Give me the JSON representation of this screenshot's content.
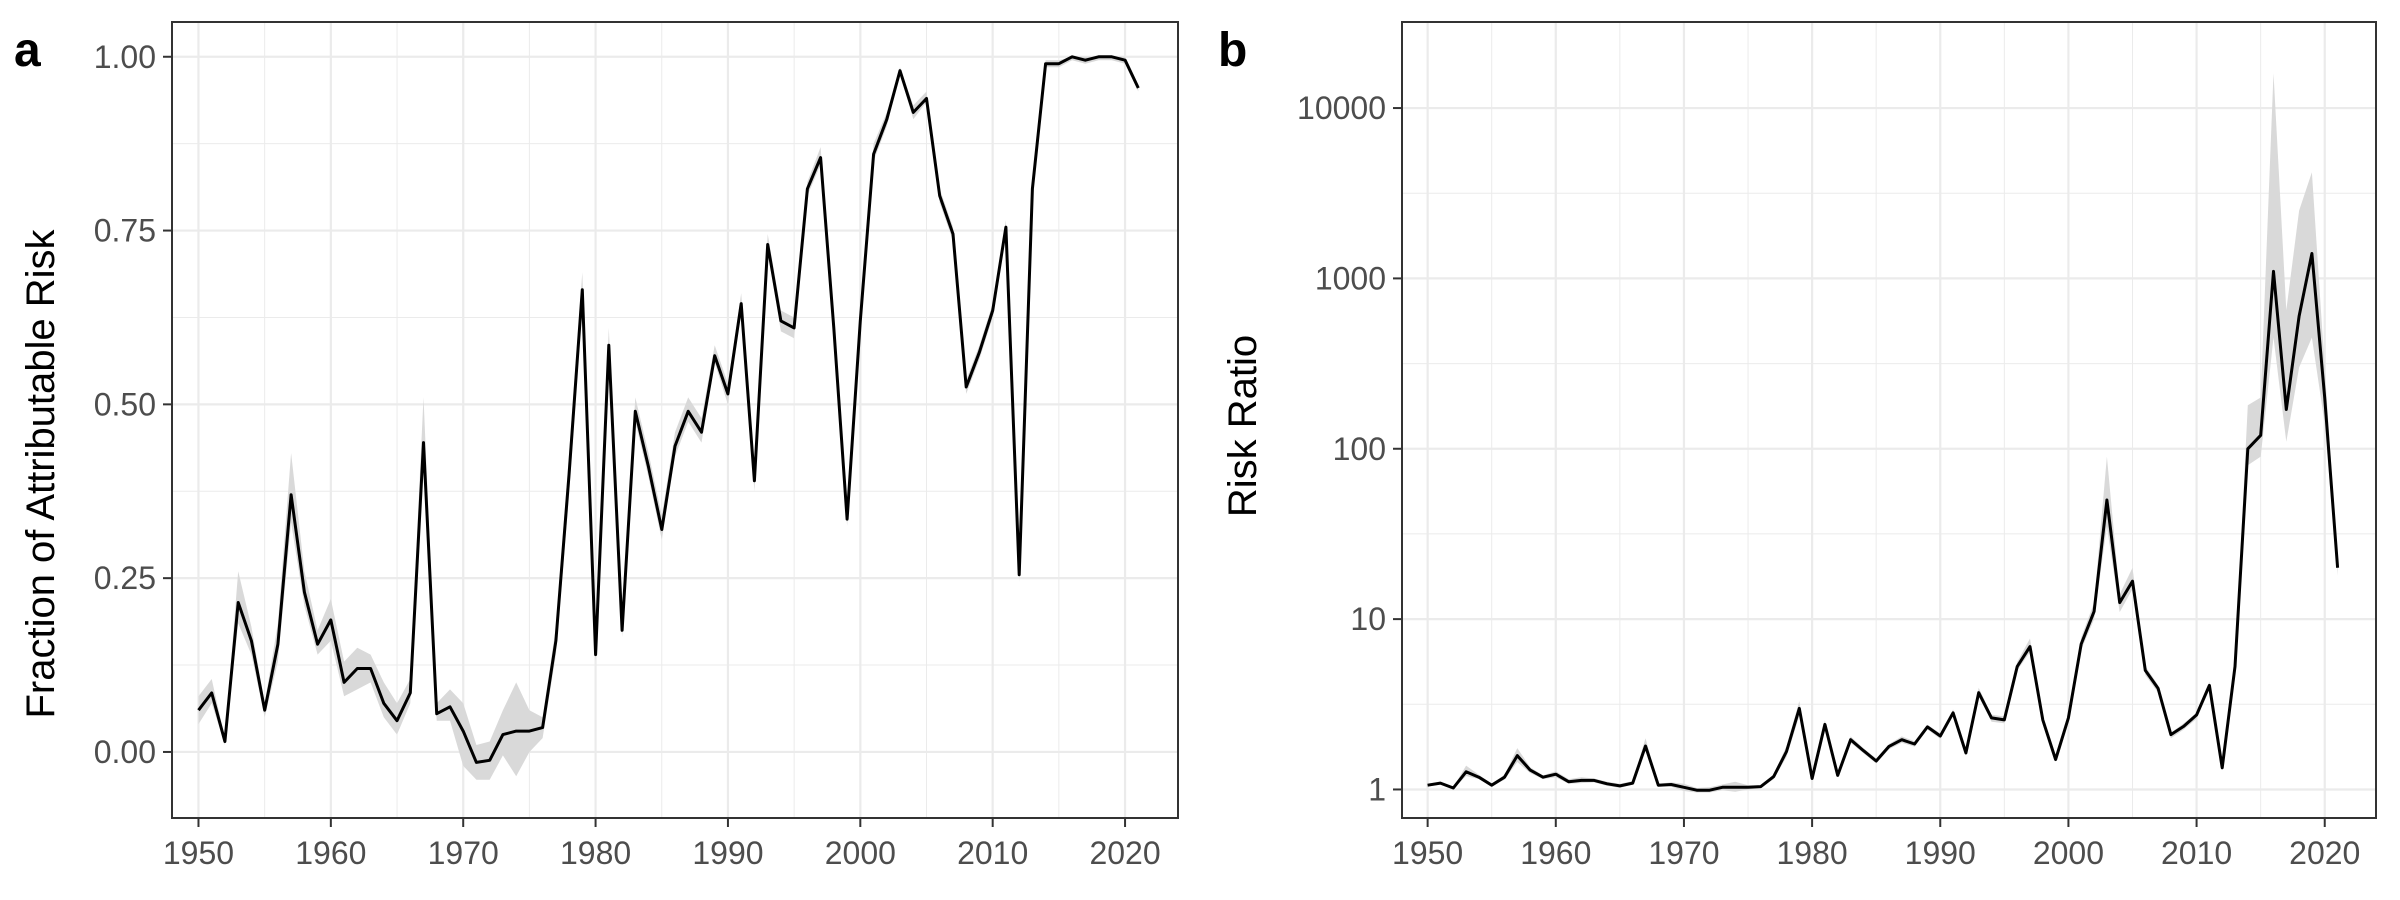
{
  "chart_data": [
    {
      "panel": "a",
      "type": "line",
      "title": "",
      "xlabel": "",
      "ylabel": "Fraction of Attributable Risk",
      "xlim": [
        1948,
        2024
      ],
      "ylim": [
        -0.095,
        1.05
      ],
      "xticks": [
        1950,
        1960,
        1970,
        1980,
        1990,
        2000,
        2010,
        2020
      ],
      "yticks": [
        0.0,
        0.25,
        0.5,
        0.75,
        1.0
      ],
      "ytick_labels": [
        "0.00",
        "0.25",
        "0.50",
        "0.75",
        "1.00"
      ],
      "grid": true,
      "colors": {
        "line": "#000000",
        "band": "#d9d9d9",
        "grid": "#ebebeb"
      },
      "series": [
        {
          "x": [
            1950,
            1951,
            1952,
            1953,
            1954,
            1955,
            1956,
            1957,
            1958,
            1959,
            1960,
            1961,
            1962,
            1963,
            1964,
            1965,
            1966,
            1967,
            1968,
            1969,
            1970,
            1971,
            1972,
            1973,
            1974,
            1975,
            1976,
            1977,
            1978,
            1979,
            1980,
            1981,
            1982,
            1983,
            1984,
            1985,
            1986,
            1987,
            1988,
            1989,
            1990,
            1991,
            1992,
            1993,
            1994,
            1995,
            1996,
            1997,
            1998,
            1999,
            2000,
            2001,
            2002,
            2003,
            2004,
            2005,
            2006,
            2007,
            2008,
            2009,
            2010,
            2011,
            2012,
            2013,
            2014,
            2015,
            2016,
            2017,
            2018,
            2019,
            2020,
            2021
          ],
          "y": [
            0.06,
            0.085,
            0.015,
            0.215,
            0.16,
            0.06,
            0.155,
            0.37,
            0.23,
            0.155,
            0.19,
            0.1,
            0.12,
            0.12,
            0.07,
            0.045,
            0.085,
            0.445,
            0.055,
            0.065,
            0.03,
            -0.015,
            -0.012,
            0.025,
            0.03,
            0.03,
            0.035,
            0.16,
            0.4,
            0.665,
            0.14,
            0.585,
            0.175,
            0.49,
            0.41,
            0.32,
            0.44,
            0.49,
            0.46,
            0.57,
            0.515,
            0.645,
            0.39,
            0.73,
            0.62,
            0.61,
            0.81,
            0.855,
            0.61,
            0.335,
            0.62,
            0.86,
            0.91,
            0.98,
            0.92,
            0.94,
            0.8,
            0.745,
            0.525,
            0.575,
            0.635,
            0.755,
            0.255,
            0.81,
            0.99,
            0.99,
            1.0,
            0.995,
            1.0,
            1.0,
            0.995,
            0.955
          ],
          "band_lower": [
            0.04,
            0.07,
            0.01,
            0.185,
            0.14,
            0.05,
            0.13,
            0.33,
            0.21,
            0.14,
            0.16,
            0.08,
            0.09,
            0.1,
            0.05,
            0.025,
            0.07,
            0.41,
            0.045,
            0.045,
            -0.02,
            -0.04,
            -0.04,
            -0.005,
            -0.035,
            0.0,
            0.02,
            0.14,
            0.37,
            0.645,
            0.13,
            0.57,
            0.165,
            0.475,
            0.395,
            0.305,
            0.425,
            0.475,
            0.445,
            0.56,
            0.5,
            0.635,
            0.375,
            0.72,
            0.605,
            0.595,
            0.8,
            0.845,
            0.6,
            0.325,
            0.61,
            0.85,
            0.9,
            0.975,
            0.91,
            0.935,
            0.79,
            0.735,
            0.515,
            0.565,
            0.625,
            0.745,
            0.245,
            0.8,
            0.985,
            0.985,
            0.995,
            0.99,
            0.995,
            0.995,
            0.99,
            0.95
          ],
          "band_upper": [
            0.08,
            0.105,
            0.02,
            0.26,
            0.18,
            0.07,
            0.185,
            0.43,
            0.26,
            0.175,
            0.22,
            0.13,
            0.15,
            0.14,
            0.1,
            0.07,
            0.105,
            0.51,
            0.07,
            0.09,
            0.07,
            0.01,
            0.015,
            0.06,
            0.1,
            0.06,
            0.05,
            0.18,
            0.43,
            0.69,
            0.155,
            0.61,
            0.19,
            0.51,
            0.43,
            0.34,
            0.46,
            0.51,
            0.48,
            0.585,
            0.53,
            0.66,
            0.405,
            0.745,
            0.635,
            0.625,
            0.82,
            0.87,
            0.62,
            0.345,
            0.635,
            0.875,
            0.92,
            0.985,
            0.93,
            0.95,
            0.81,
            0.755,
            0.535,
            0.585,
            0.645,
            0.765,
            0.265,
            0.82,
            0.995,
            0.995,
            1.0,
            1.0,
            1.0,
            1.0,
            1.0,
            0.96
          ]
        }
      ]
    },
    {
      "panel": "b",
      "type": "line",
      "title": "",
      "xlabel": "",
      "ylabel": "Risk Ratio",
      "xlim": [
        1948,
        2024
      ],
      "ylim": [
        0.68,
        32000
      ],
      "yscale": "log",
      "xticks": [
        1950,
        1960,
        1970,
        1980,
        1990,
        2000,
        2010,
        2020
      ],
      "yticks": [
        1,
        10,
        100,
        1000,
        10000
      ],
      "ytick_labels": [
        "1",
        "10",
        "100",
        "1000",
        "10000"
      ],
      "grid": true,
      "colors": {
        "line": "#000000",
        "band": "#d9d9d9",
        "grid": "#ebebeb"
      },
      "series": [
        {
          "x": [
            1950,
            1951,
            1952,
            1953,
            1954,
            1955,
            1956,
            1957,
            1958,
            1959,
            1960,
            1961,
            1962,
            1963,
            1964,
            1965,
            1966,
            1967,
            1968,
            1969,
            1970,
            1971,
            1972,
            1973,
            1974,
            1975,
            1976,
            1977,
            1978,
            1979,
            1980,
            1981,
            1982,
            1983,
            1984,
            1985,
            1986,
            1987,
            1988,
            1989,
            1990,
            1991,
            1992,
            1993,
            1994,
            1995,
            1996,
            1997,
            1998,
            1999,
            2000,
            2001,
            2002,
            2003,
            2004,
            2005,
            2006,
            2007,
            2008,
            2009,
            2010,
            2011,
            2012,
            2013,
            2014,
            2015,
            2016,
            2017,
            2018,
            2019,
            2020,
            2021
          ],
          "y": [
            1.06,
            1.09,
            1.02,
            1.27,
            1.18,
            1.06,
            1.18,
            1.58,
            1.3,
            1.18,
            1.23,
            1.11,
            1.13,
            1.13,
            1.08,
            1.05,
            1.09,
            1.8,
            1.06,
            1.07,
            1.03,
            0.99,
            0.99,
            1.03,
            1.03,
            1.03,
            1.04,
            1.19,
            1.67,
            2.99,
            1.16,
            2.41,
            1.21,
            1.96,
            1.69,
            1.47,
            1.79,
            1.96,
            1.85,
            2.33,
            2.06,
            2.82,
            1.64,
            3.7,
            2.63,
            2.56,
            5.26,
            6.9,
            2.56,
            1.5,
            2.63,
            7.14,
            11.1,
            50.0,
            12.5,
            16.7,
            5.0,
            3.92,
            2.1,
            2.35,
            2.74,
            4.08,
            1.34,
            5.26,
            100.0,
            120.0,
            1100.0,
            170.0,
            600.0,
            1400.0,
            200.0,
            20.0
          ],
          "band_lower": [
            1.04,
            1.07,
            1.01,
            1.2,
            1.15,
            1.05,
            1.14,
            1.45,
            1.25,
            1.15,
            1.18,
            1.08,
            1.09,
            1.1,
            1.05,
            1.02,
            1.07,
            1.7,
            1.04,
            1.04,
            0.98,
            0.96,
            0.96,
            0.99,
            0.97,
            1.0,
            1.02,
            1.15,
            1.55,
            2.7,
            1.14,
            2.3,
            1.19,
            1.88,
            1.63,
            1.42,
            1.72,
            1.88,
            1.78,
            2.25,
            1.98,
            2.72,
            1.58,
            3.5,
            2.5,
            2.45,
            5.0,
            6.4,
            2.45,
            1.45,
            2.5,
            6.6,
            10.0,
            35.0,
            11.0,
            15.0,
            4.7,
            3.7,
            2.0,
            2.25,
            2.6,
            3.85,
            1.3,
            5.0,
            80.0,
            90.0,
            450.0,
            110.0,
            300.0,
            450.0,
            140.0,
            18.0
          ],
          "band_upper": [
            1.08,
            1.11,
            1.03,
            1.38,
            1.22,
            1.08,
            1.22,
            1.75,
            1.35,
            1.21,
            1.28,
            1.15,
            1.18,
            1.16,
            1.11,
            1.08,
            1.12,
            2.0,
            1.08,
            1.1,
            1.08,
            1.02,
            1.03,
            1.07,
            1.11,
            1.06,
            1.06,
            1.23,
            1.8,
            3.3,
            1.18,
            2.55,
            1.23,
            2.05,
            1.75,
            1.52,
            1.85,
            2.05,
            1.92,
            2.4,
            2.14,
            2.95,
            1.68,
            3.95,
            2.75,
            2.68,
            5.6,
            7.7,
            2.63,
            1.55,
            2.75,
            7.8,
            12.5,
            90.0,
            14.0,
            20.0,
            5.3,
            4.1,
            2.15,
            2.45,
            2.82,
            4.3,
            1.38,
            5.6,
            180.0,
            200.0,
            16000.0,
            650.0,
            2500.0,
            4200.0,
            300.0,
            22.0
          ]
        }
      ]
    }
  ]
}
